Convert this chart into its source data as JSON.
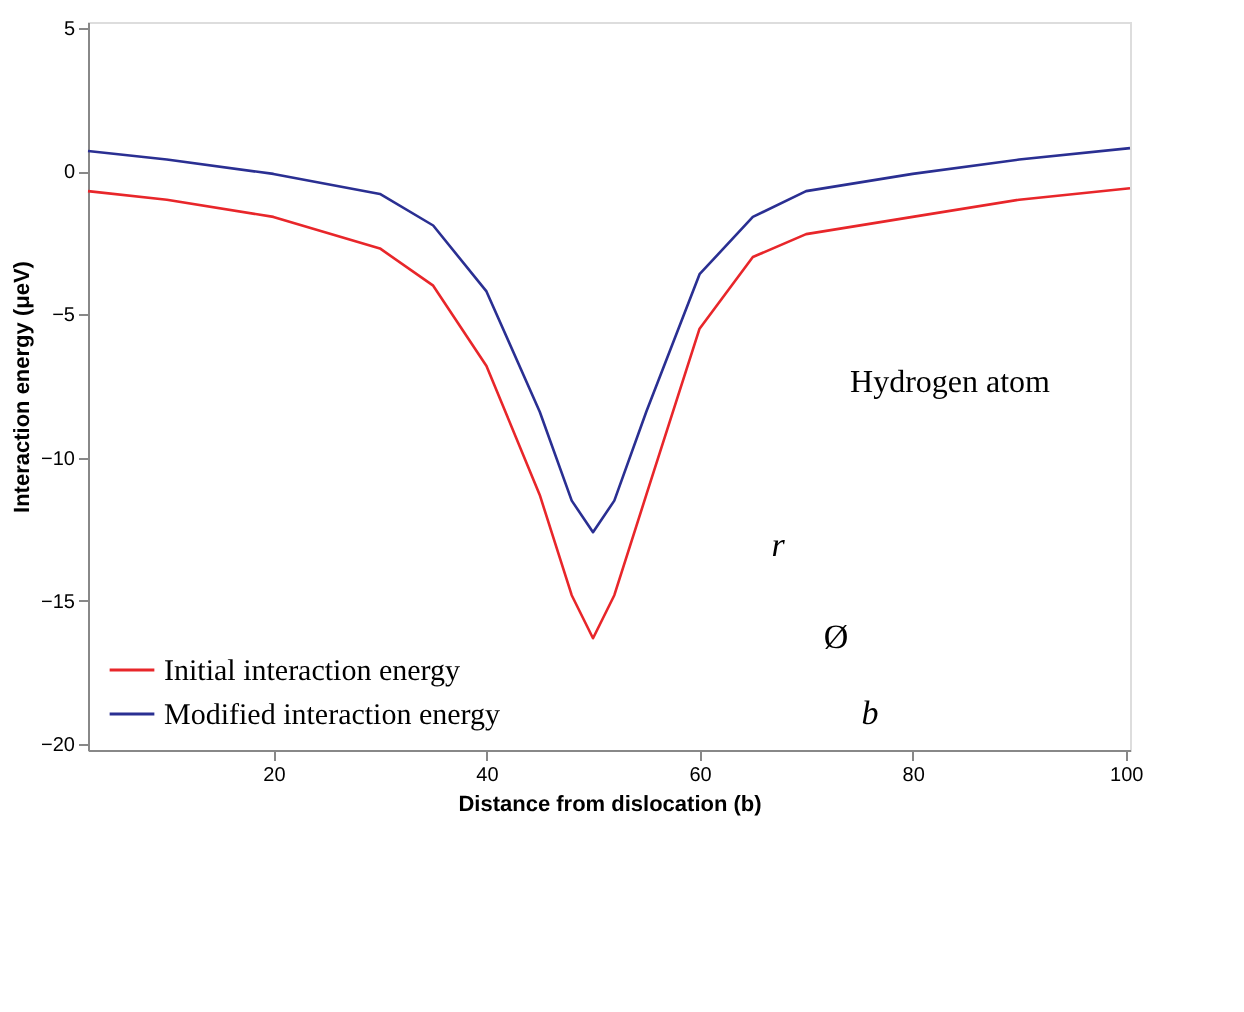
{
  "chart_data": {
    "type": "line",
    "xlabel": "Distance from dislocation (b)",
    "ylabel": "Interaction energy (μeV)",
    "x": [
      2.6,
      10,
      20,
      30,
      35,
      40,
      45,
      48,
      50,
      52,
      55,
      60,
      65,
      70,
      80,
      90,
      100.4
    ],
    "series": [
      {
        "name": "Initial interaction energy",
        "color": "#e8262a",
        "values": [
          -0.7,
          -1.0,
          -1.6,
          -2.7,
          -4.0,
          -6.8,
          -11.3,
          -14.8,
          -16.3,
          -14.8,
          -11.3,
          -5.5,
          -3.0,
          -2.2,
          -1.6,
          -1.0,
          -0.6
        ]
      },
      {
        "name": "Modified interaction energy",
        "color": "#2a2f92",
        "values": [
          0.7,
          0.4,
          -0.1,
          -0.8,
          -1.9,
          -4.2,
          -8.4,
          -11.5,
          -12.6,
          -11.5,
          -8.4,
          -3.6,
          -1.6,
          -0.7,
          -0.1,
          0.4,
          0.8
        ]
      }
    ],
    "xlim": [
      2.6,
      100.4
    ],
    "ylim": [
      -20.2,
      5.2
    ],
    "xticks": [
      20,
      40,
      60,
      80,
      100
    ],
    "yticks": [
      -20,
      -15,
      -10,
      -5,
      0,
      5
    ],
    "grid": false,
    "legend": "bottom",
    "marker": "none",
    "line_style": "solid",
    "annotations": [
      "Hydrogen atom",
      "r",
      "Ø",
      "b"
    ]
  }
}
